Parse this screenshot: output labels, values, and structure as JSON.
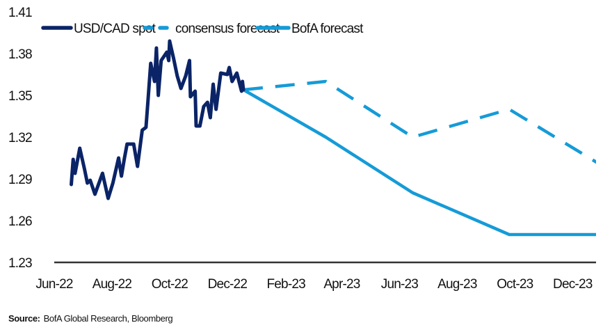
{
  "chart_data": {
    "type": "line",
    "title": "",
    "xlabel": "",
    "ylabel": "",
    "ylim": [
      1.23,
      1.41
    ],
    "yticks": [
      "1.41",
      "1.38",
      "1.35",
      "1.32",
      "1.29",
      "1.26",
      "1.23"
    ],
    "xlim": [
      "2022-06-01",
      "2023-12-26"
    ],
    "xticks": [
      {
        "label": "Jun-22",
        "date": "2022-06-01"
      },
      {
        "label": "Aug-22",
        "date": "2022-08-01"
      },
      {
        "label": "Oct-22",
        "date": "2022-10-01"
      },
      {
        "label": "Dec-22",
        "date": "2022-12-01"
      },
      {
        "label": "Feb-23",
        "date": "2023-02-01"
      },
      {
        "label": "Apr-23",
        "date": "2023-04-01"
      },
      {
        "label": "Jun-23",
        "date": "2023-06-01"
      },
      {
        "label": "Aug-23",
        "date": "2023-08-01"
      },
      {
        "label": "Oct-23",
        "date": "2023-10-01"
      },
      {
        "label": "Dec-23",
        "date": "2023-12-01"
      }
    ],
    "grid": false,
    "legend_placement": "top",
    "series": [
      {
        "name": "USD/CAD spot",
        "color": "#0b2467",
        "style": "solid",
        "points": [
          [
            "2022-06-19",
            1.286
          ],
          [
            "2022-06-21",
            1.304
          ],
          [
            "2022-06-23",
            1.294
          ],
          [
            "2022-06-28",
            1.312
          ],
          [
            "2022-07-03",
            1.297
          ],
          [
            "2022-07-06",
            1.287
          ],
          [
            "2022-07-09",
            1.289
          ],
          [
            "2022-07-14",
            1.279
          ],
          [
            "2022-07-22",
            1.294
          ],
          [
            "2022-07-28",
            1.276
          ],
          [
            "2022-08-02",
            1.287
          ],
          [
            "2022-08-08",
            1.305
          ],
          [
            "2022-08-11",
            1.292
          ],
          [
            "2022-08-14",
            1.304
          ],
          [
            "2022-08-17",
            1.315
          ],
          [
            "2022-08-24",
            1.315
          ],
          [
            "2022-08-28",
            1.299
          ],
          [
            "2022-09-02",
            1.325
          ],
          [
            "2022-09-06",
            1.327
          ],
          [
            "2022-09-08",
            1.345
          ],
          [
            "2022-09-11",
            1.373
          ],
          [
            "2022-09-15",
            1.36
          ],
          [
            "2022-09-17",
            1.384
          ],
          [
            "2022-09-19",
            1.35
          ],
          [
            "2022-09-22",
            1.375
          ],
          [
            "2022-09-28",
            1.381
          ],
          [
            "2022-09-30",
            1.375
          ],
          [
            "2022-10-01",
            1.389
          ],
          [
            "2022-10-05",
            1.377
          ],
          [
            "2022-10-09",
            1.364
          ],
          [
            "2022-10-13",
            1.355
          ],
          [
            "2022-10-18",
            1.364
          ],
          [
            "2022-10-22",
            1.375
          ],
          [
            "2022-10-23",
            1.349
          ],
          [
            "2022-10-28",
            1.353
          ],
          [
            "2022-10-29",
            1.328
          ],
          [
            "2022-11-02",
            1.328
          ],
          [
            "2022-11-06",
            1.342
          ],
          [
            "2022-11-10",
            1.345
          ],
          [
            "2022-11-13",
            1.334
          ],
          [
            "2022-11-16",
            1.358
          ],
          [
            "2022-11-19",
            1.34
          ],
          [
            "2022-11-24",
            1.366
          ],
          [
            "2022-12-01",
            1.365
          ],
          [
            "2022-12-03",
            1.37
          ],
          [
            "2022-12-06",
            1.36
          ],
          [
            "2022-12-11",
            1.366
          ],
          [
            "2022-12-16",
            1.353
          ],
          [
            "2022-12-17",
            1.36
          ],
          [
            "2022-12-18",
            1.354
          ]
        ]
      },
      {
        "name": "consensus forecast",
        "color": "#159bd7",
        "style": "dashed",
        "points": [
          [
            "2022-12-18",
            1.354
          ],
          [
            "2023-03-15",
            1.36
          ],
          [
            "2023-06-15",
            1.32
          ],
          [
            "2023-09-25",
            1.34
          ],
          [
            "2023-12-31",
            1.3
          ]
        ]
      },
      {
        "name": "BofA forecast",
        "color": "#159bd7",
        "style": "solid",
        "points": [
          [
            "2022-12-18",
            1.354
          ],
          [
            "2023-03-15",
            1.32
          ],
          [
            "2023-06-15",
            1.28
          ],
          [
            "2023-09-25",
            1.25
          ],
          [
            "2023-12-31",
            1.25
          ]
        ]
      }
    ]
  },
  "source": {
    "label": "Source:",
    "text": "BofA Global Research, Bloomberg"
  }
}
